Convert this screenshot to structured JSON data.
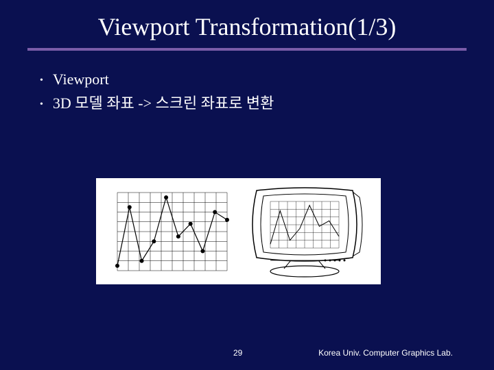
{
  "title": "Viewport Transformation(1/3)",
  "bullets": [
    "Viewport",
    "3D 모델 좌표 -> 스크린 좌표로 변환"
  ],
  "page_number": "29",
  "footer": "Korea Univ. Computer Graphics Lab.",
  "colors": {
    "background": "#0a1050",
    "text": "#ffffff",
    "divider": "#7a5ca8",
    "figure_bg": "#ffffff",
    "chart_stroke": "#000000"
  },
  "chart": {
    "type": "line",
    "grid_cols": 10,
    "grid_rows": 8,
    "x_values": [
      0,
      1,
      2,
      3,
      4,
      5,
      6,
      7,
      8,
      9
    ],
    "y_values": [
      0.5,
      6.5,
      1.0,
      3.0,
      7.5,
      3.5,
      4.8,
      2.0,
      6.0,
      5.2
    ],
    "marker": "circle",
    "marker_radius": 3,
    "line_width": 1.2,
    "grid_color": "#000000",
    "grid_width": 0.5,
    "ylim": [
      0,
      8
    ],
    "xlim": [
      0,
      9
    ]
  },
  "monitor_chart": {
    "type": "line",
    "grid_cols": 8,
    "grid_rows": 6,
    "x_values": [
      0,
      1,
      2,
      3,
      4,
      5,
      6,
      7
    ],
    "y_values": [
      0.5,
      4.8,
      1.0,
      2.5,
      5.5,
      2.8,
      3.5,
      1.5
    ],
    "marker": "none",
    "line_width": 1,
    "grid_color": "#000000",
    "grid_width": 0.4,
    "ylim": [
      0,
      6
    ],
    "xlim": [
      0,
      7
    ]
  }
}
